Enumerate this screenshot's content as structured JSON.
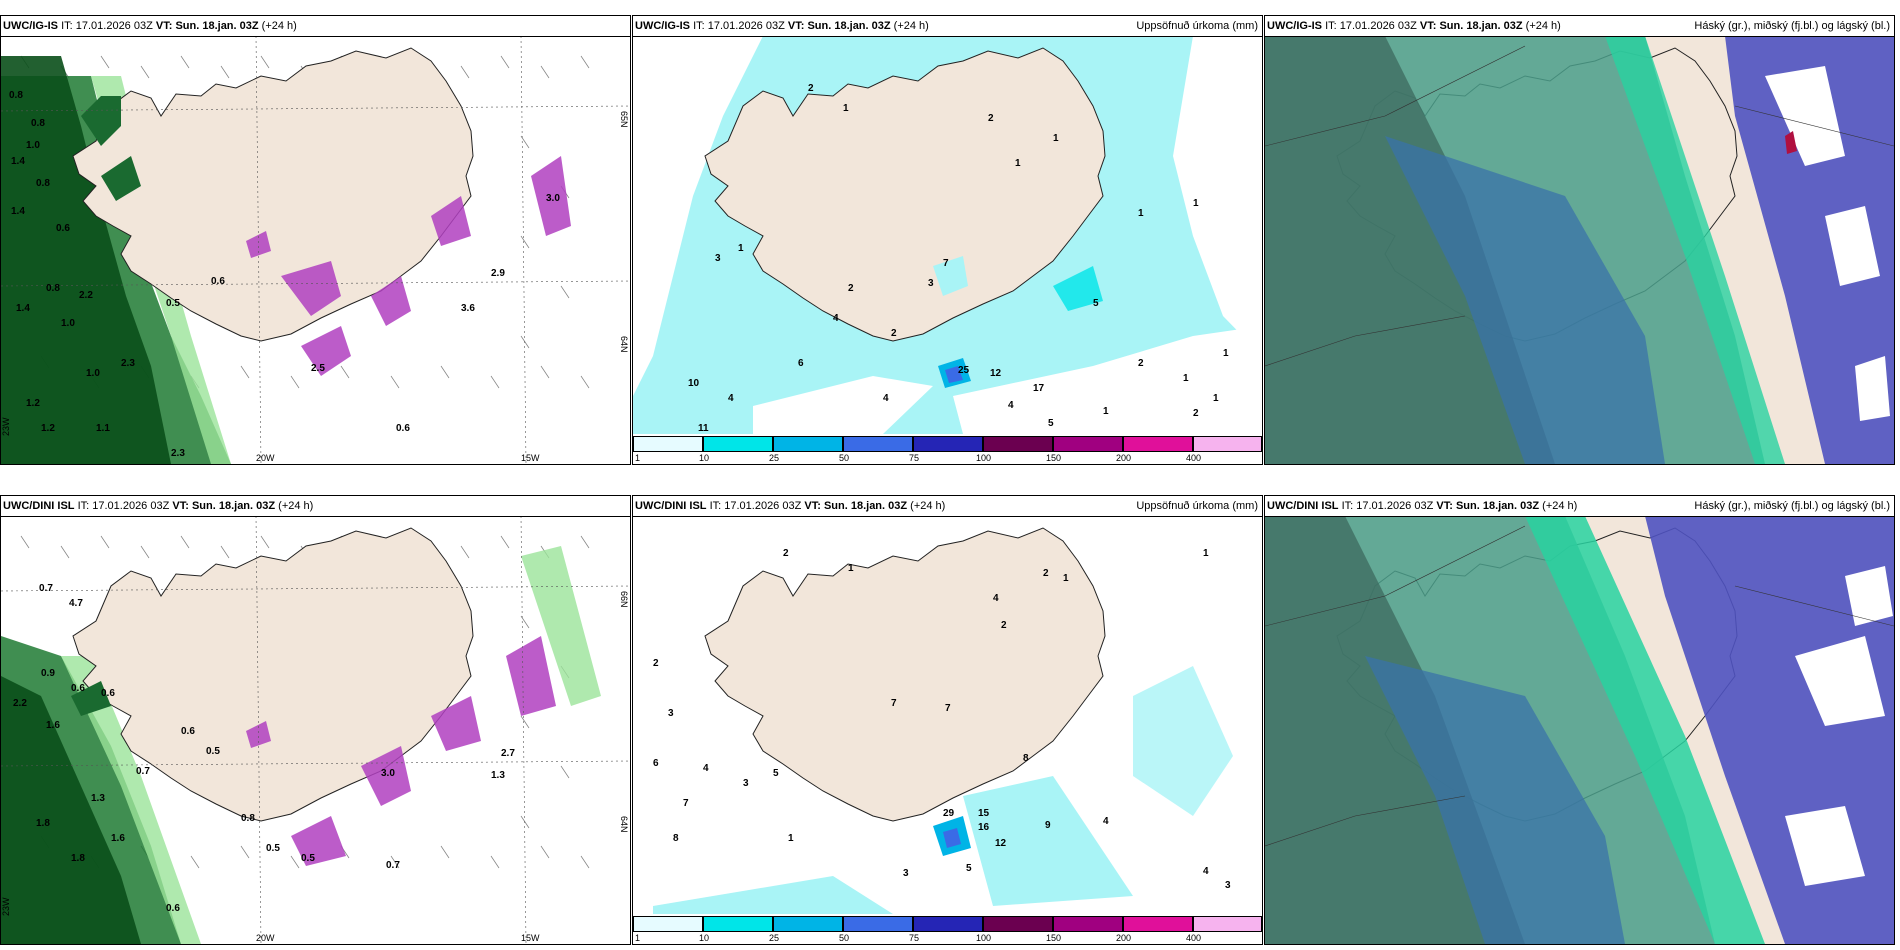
{
  "rows": [
    {
      "model": "UWC/IG-IS",
      "it_label": "IT:",
      "it_value": "17.01.2026 03Z",
      "vt_label": "VT:",
      "vt_value": "Sun. 18.jan. 03Z",
      "lead": "(+24 h)",
      "wind_labels": [
        "0.8",
        "0.8",
        "1.0",
        "1.4",
        "0.8",
        "1.4",
        "0.6",
        "0.8",
        "1.4",
        "2.2",
        "1.0",
        "1.2",
        "1.0",
        "2.3",
        "0.5",
        "0.6",
        "1.2",
        "1.1",
        "2.3",
        "0.6",
        "3.6",
        "2.9",
        "3.0",
        "2.5"
      ],
      "axis_labels": [
        "65N",
        "64N",
        "20W",
        "15W",
        "23W"
      ],
      "precip_labels": [
        "2",
        "1",
        "2",
        "1",
        "1",
        "1",
        "3",
        "1",
        "2",
        "4",
        "1",
        "6",
        "7",
        "3",
        "2",
        "4",
        "5",
        "25",
        "12",
        "17",
        "4",
        "5",
        "10",
        "4",
        "11",
        "1",
        "2",
        "1",
        "1",
        "1",
        "2"
      ]
    },
    {
      "model": "UWC/DINI ISL",
      "it_label": "IT:",
      "it_value": "17.01.2026 03Z",
      "vt_label": "VT:",
      "vt_value": "Sun. 18.jan. 03Z",
      "lead": "(+24 h)",
      "wind_labels": [
        "0.7",
        "4.7",
        "0.9",
        "0.6",
        "0.6",
        "2.2",
        "1.6",
        "0.6",
        "0.5",
        "0.7",
        "1.3",
        "1.8",
        "1.6",
        "1.8",
        "3.0",
        "2.7",
        "0.8",
        "0.5",
        "0.5",
        "0.7",
        "0.6",
        "1.3"
      ],
      "axis_labels": [
        "66N",
        "64N",
        "20W",
        "15W",
        "23W"
      ],
      "precip_labels": [
        "2",
        "1",
        "2",
        "1",
        "4",
        "2",
        "7",
        "7",
        "1",
        "2",
        "3",
        "6",
        "4",
        "3",
        "7",
        "5",
        "8",
        "1",
        "8",
        "29",
        "15",
        "16",
        "12",
        "9",
        "5",
        "3",
        "4",
        "4",
        "3"
      ]
    }
  ],
  "precip_title": "Uppsöfnuð úrkoma (mm)",
  "cloud_title": "Háský (gr.), miðský (fj.bl.) og lágský (bl.)",
  "colorbar": {
    "ticks": [
      "1",
      "10",
      "25",
      "50",
      "75",
      "100",
      "150",
      "200",
      "400"
    ],
    "colors": [
      "#e6fbff",
      "#00e5e8",
      "#00b4e6",
      "#3a6be6",
      "#2525b5",
      "#6b0050",
      "#a00080",
      "#e0109a",
      "#f6b3ee"
    ]
  },
  "colors": {
    "land": "#f2e6da",
    "sea_precip": "#a9f4f6",
    "wind_green_dark": "#0a5a1e",
    "wind_green_light": "#9be39a",
    "snow_purple": "#b040c0",
    "cloud_high": "#4a9e8a",
    "cloud_mid": "#3a73a8",
    "cloud_low": "#4f52c0"
  }
}
